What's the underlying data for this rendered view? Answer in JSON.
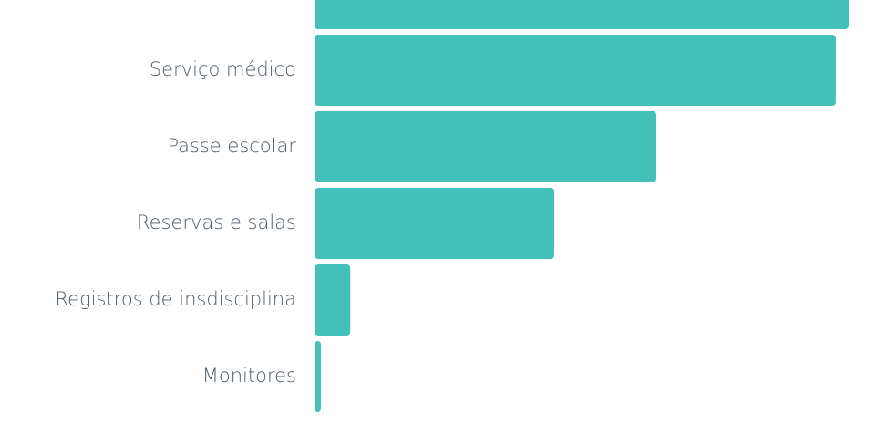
{
  "chart_data": {
    "type": "barh",
    "categories": [
      null,
      "Serviço médico",
      "Passe escolar",
      "Reservas e salas",
      "Registros de insdisciplina",
      "Monitores"
    ],
    "values": [
      100,
      97.6,
      64,
      44.9,
      6.7,
      1.2
    ],
    "color": "#43c1b8",
    "xlim": [
      0,
      100
    ]
  }
}
